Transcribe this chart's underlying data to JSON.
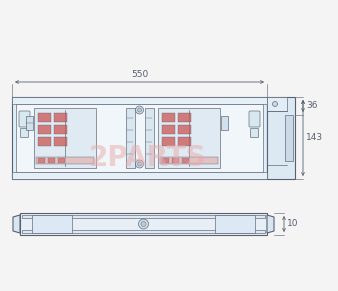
{
  "bg_color": "#f0f4f8",
  "outline_color": "#5a6070",
  "light_blue_fill": "#ddeef8",
  "inner_fill": "#eaf3f9",
  "inner_fill2": "#f0f6fa",
  "component_color": "#7a8898",
  "red_component": "#cc5555",
  "dim_550": "550",
  "dim_36": "36",
  "dim_143": "143",
  "dim_10": "10",
  "watermark_text": "2PARTS",
  "watermark_color": "#e8aaaa",
  "fig_bg": "#f4f4f4"
}
